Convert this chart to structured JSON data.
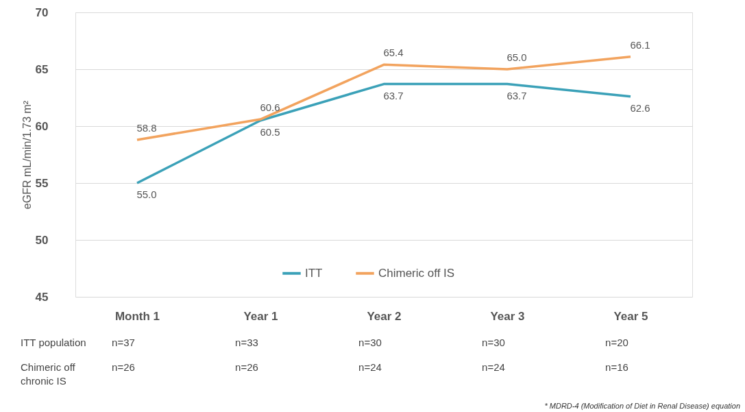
{
  "chart_data": {
    "type": "line",
    "categories": [
      "Month 1",
      "Year 1",
      "Year 2",
      "Year 3",
      "Year 5"
    ],
    "ylabel": "eGFR mL/min/1.73 m²",
    "ylim": [
      45,
      70
    ],
    "yticks": [
      45,
      50,
      55,
      60,
      65,
      70
    ],
    "grid": "y",
    "legend": "bottom",
    "series": [
      {
        "name": "ITT",
        "color": "#3ba1b8",
        "values": [
          55.0,
          60.5,
          63.7,
          63.7,
          62.6
        ],
        "value_labels": [
          "55.0",
          "60.5",
          "63.7",
          "63.7",
          "62.6"
        ]
      },
      {
        "name": "Chimeric off IS",
        "color": "#f2a35e",
        "values": [
          58.8,
          60.6,
          65.4,
          65.0,
          66.1
        ],
        "value_labels": [
          "58.8",
          "60.6",
          "65.4",
          "65.0",
          "66.1"
        ]
      }
    ],
    "annotations": [
      "ITT population",
      "n=37",
      "n=33",
      "n=30",
      "n=30",
      "n=20",
      "Chimeric off\nchronic IS",
      "n=26",
      "n=26",
      "n=24",
      "n=24",
      "n=16",
      "* MDRD-4 (Modification of Diet in Renal Disease) equation"
    ]
  }
}
